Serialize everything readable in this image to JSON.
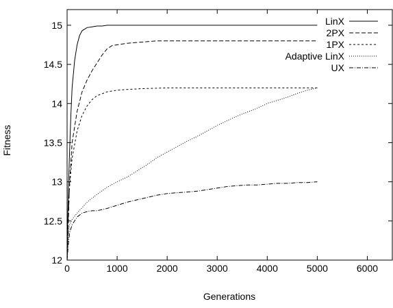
{
  "chart_data": {
    "type": "line",
    "title": "",
    "xlabel": "Generations",
    "ylabel": "Fitness",
    "xlim": [
      0,
      6500
    ],
    "ylim": [
      12,
      15.2
    ],
    "xticks": [
      0,
      1000,
      2000,
      3000,
      4000,
      5000,
      6000
    ],
    "yticks": [
      12,
      12.5,
      13,
      13.5,
      14,
      14.5,
      15
    ],
    "xtick_labels": [
      "0",
      "1000",
      "2000",
      "3000",
      "4000",
      "5000",
      "6000"
    ],
    "ytick_labels": [
      "12",
      "12.5",
      "13",
      "13.5",
      "14",
      "14.5",
      "15"
    ],
    "grid": false,
    "legend_position": "top-right",
    "series": [
      {
        "name": "LinX",
        "dash": "solid",
        "x": [
          0,
          25,
          50,
          75,
          100,
          150,
          200,
          250,
          300,
          400,
          500,
          600,
          700,
          800,
          900,
          1000,
          2000,
          3000,
          4000,
          5000
        ],
        "y": [
          12.0,
          12.9,
          13.4,
          13.85,
          14.2,
          14.55,
          14.75,
          14.87,
          14.93,
          14.97,
          14.98,
          14.99,
          14.99,
          15.0,
          15.0,
          15.0,
          15.0,
          15.0,
          15.0,
          15.0
        ]
      },
      {
        "name": "2PX",
        "dash": "6,3",
        "x": [
          0,
          50,
          100,
          200,
          300,
          400,
          500,
          600,
          700,
          800,
          900,
          1000,
          1200,
          1400,
          1600,
          1800,
          2000,
          3000,
          4000,
          5000
        ],
        "y": [
          12.0,
          13.0,
          13.5,
          13.9,
          14.15,
          14.3,
          14.42,
          14.52,
          14.62,
          14.7,
          14.74,
          14.75,
          14.77,
          14.78,
          14.79,
          14.8,
          14.8,
          14.8,
          14.8,
          14.8
        ]
      },
      {
        "name": "1PX",
        "dash": "3,3",
        "x": [
          0,
          25,
          50,
          100,
          200,
          300,
          400,
          500,
          600,
          800,
          1000,
          1200,
          1500,
          2000,
          3000,
          4000,
          5000
        ],
        "y": [
          12.0,
          12.6,
          12.95,
          13.3,
          13.65,
          13.85,
          13.97,
          14.05,
          14.1,
          14.15,
          14.17,
          14.18,
          14.19,
          14.2,
          14.2,
          14.2,
          14.2
        ]
      },
      {
        "name": "Adaptive LinX",
        "dash": "1,2",
        "x": [
          0,
          25,
          50,
          100,
          200,
          300,
          400,
          500,
          600,
          800,
          1000,
          1200,
          1400,
          1600,
          1800,
          2000,
          2200,
          2400,
          2600,
          2800,
          3000,
          3200,
          3400,
          3600,
          3800,
          4000,
          4200,
          4400,
          4600,
          4800,
          5000
        ],
        "y": [
          12.0,
          12.3,
          12.45,
          12.52,
          12.6,
          12.67,
          12.74,
          12.79,
          12.84,
          12.93,
          13.0,
          13.06,
          13.14,
          13.22,
          13.31,
          13.38,
          13.45,
          13.52,
          13.58,
          13.65,
          13.72,
          13.78,
          13.84,
          13.89,
          13.94,
          14.0,
          14.04,
          14.08,
          14.13,
          14.17,
          14.2
        ]
      },
      {
        "name": "UX",
        "dash": "6,2,1,2",
        "x": [
          0,
          25,
          50,
          100,
          200,
          300,
          400,
          500,
          600,
          800,
          1000,
          1200,
          1400,
          1600,
          1800,
          2000,
          2200,
          2400,
          2600,
          2800,
          3000,
          3200,
          3400,
          3600,
          3800,
          4000,
          4200,
          4400,
          4600,
          4800,
          5000
        ],
        "y": [
          12.0,
          12.2,
          12.35,
          12.45,
          12.55,
          12.6,
          12.62,
          12.63,
          12.63,
          12.66,
          12.7,
          12.74,
          12.77,
          12.8,
          12.83,
          12.85,
          12.86,
          12.87,
          12.88,
          12.9,
          12.92,
          12.94,
          12.95,
          12.96,
          12.96,
          12.97,
          12.98,
          12.98,
          12.99,
          12.99,
          13.0
        ]
      }
    ]
  }
}
